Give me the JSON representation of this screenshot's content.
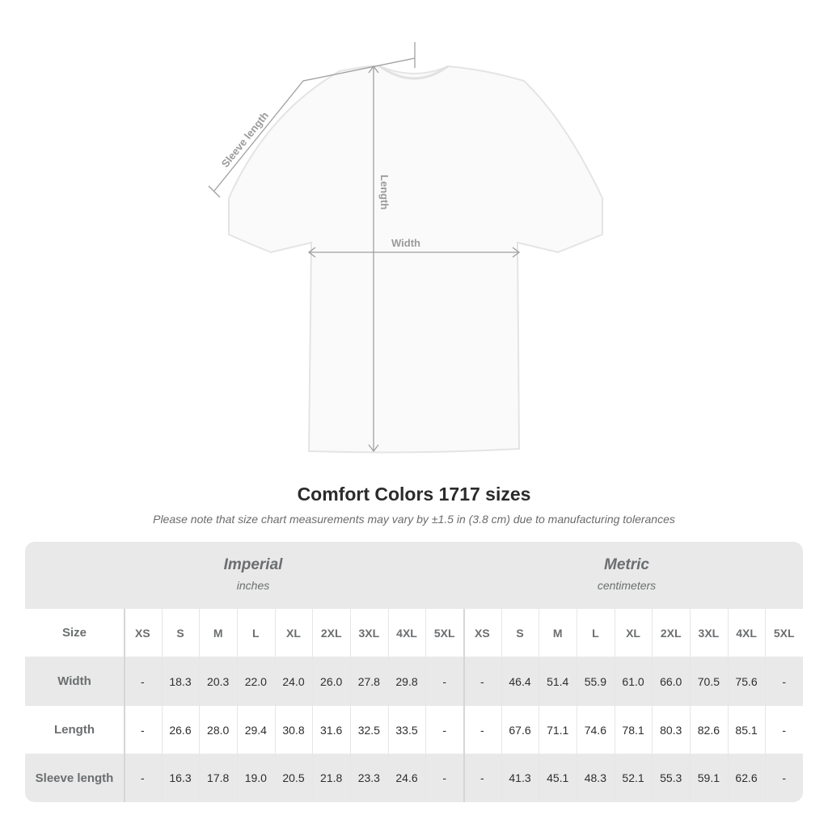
{
  "diagram": {
    "sleeve_label": "Sleeve length",
    "length_label": "Length",
    "width_label": "Width"
  },
  "title": "Comfort Colors 1717 sizes",
  "note": "Please note that size chart measurements may vary by ±1.5 in (3.8 cm) due to manufacturing tolerances",
  "table": {
    "imperial": {
      "title": "Imperial",
      "unit": "inches"
    },
    "metric": {
      "title": "Metric",
      "unit": "centimeters"
    },
    "size_header": "Size",
    "sizes": [
      "XS",
      "S",
      "M",
      "L",
      "XL",
      "2XL",
      "3XL",
      "4XL",
      "5XL"
    ],
    "rows": [
      {
        "label": "Width",
        "imperial": [
          "-",
          "18.3",
          "20.3",
          "22.0",
          "24.0",
          "26.0",
          "27.8",
          "29.8",
          "-"
        ],
        "metric": [
          "-",
          "46.4",
          "51.4",
          "55.9",
          "61.0",
          "66.0",
          "70.5",
          "75.6",
          "-"
        ]
      },
      {
        "label": "Length",
        "imperial": [
          "-",
          "26.6",
          "28.0",
          "29.4",
          "30.8",
          "31.6",
          "32.5",
          "33.5",
          "-"
        ],
        "metric": [
          "-",
          "67.6",
          "71.1",
          "74.6",
          "78.1",
          "80.3",
          "82.6",
          "85.1",
          "-"
        ]
      },
      {
        "label": "Sleeve length",
        "imperial": [
          "-",
          "16.3",
          "17.8",
          "19.0",
          "20.5",
          "21.8",
          "23.3",
          "24.6",
          "-"
        ],
        "metric": [
          "-",
          "41.3",
          "45.1",
          "48.3",
          "52.1",
          "55.3",
          "59.1",
          "62.6",
          "-"
        ]
      }
    ]
  },
  "colors": {
    "band": "#e9e9e9",
    "header_text": "#6b6e70",
    "measure_line": "#a0a0a0"
  }
}
